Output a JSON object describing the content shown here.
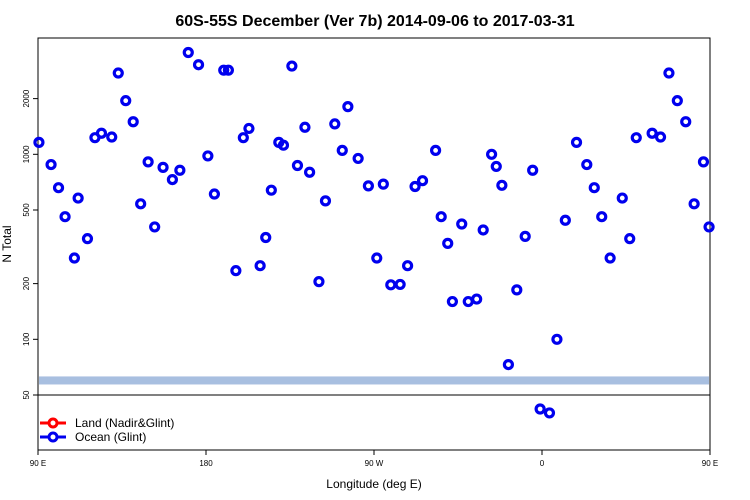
{
  "chart_data": {
    "type": "scatter",
    "title": "60S-55S December (Ver 7b)   2014-09-06 to 2017-03-31",
    "xlabel": "Longitude (deg E)",
    "ylabel": "N Total",
    "x_scale": "longitude",
    "y_scale": "log",
    "xlim": [
      90,
      450
    ],
    "ylim": [
      50,
      5000
    ],
    "x_ticks": [
      {
        "value": 90,
        "label": "90 E"
      },
      {
        "value": 180,
        "label": "180"
      },
      {
        "value": 270,
        "label": "90 W"
      },
      {
        "value": 360,
        "label": "0"
      },
      {
        "value": 450,
        "label": "90 E"
      },
      {
        "value": 540,
        "label": "180"
      }
    ],
    "y_ticks": [
      {
        "value": 50,
        "label": "50"
      },
      {
        "value": 100,
        "label": "100"
      },
      {
        "value": 200,
        "label": "200"
      },
      {
        "value": 500,
        "label": "500"
      },
      {
        "value": 1000,
        "label": "1000"
      },
      {
        "value": 2000,
        "label": "2000"
      }
    ],
    "legend": {
      "position": "bottom-left",
      "entries": [
        {
          "name": "Land (Nadir&Glint)",
          "color": "#ff0000"
        },
        {
          "name": "Ocean (Glint)",
          "color": "#0000ee"
        }
      ]
    },
    "band": {
      "y_range": [
        57,
        63
      ],
      "color": "#a8bfe0"
    },
    "series": [
      {
        "name": "Ocean (Glint)",
        "color": "#0000ee",
        "x": [
          90.5,
          97,
          101,
          104.5,
          109.5,
          111.5,
          116.5,
          120.5,
          124,
          129.5,
          133,
          137,
          141,
          145,
          149,
          152.5,
          157,
          162,
          166,
          170.5,
          176,
          181,
          184.5,
          189.5,
          192,
          196,
          200,
          203,
          209,
          212,
          215,
          219,
          221.5,
          226,
          229,
          233,
          235.5,
          240.5,
          244,
          249,
          253,
          256,
          261.5,
          267,
          271.5,
          275,
          279,
          284,
          288,
          292,
          296,
          303,
          306,
          309.5,
          312,
          317,
          320.5,
          325,
          328.5,
          333,
          335.5,
          338.5,
          342,
          346.5,
          351,
          355,
          359,
          364,
          368,
          372.5,
          378.5,
          384,
          388,
          392,
          396.5,
          403,
          407,
          410.5,
          419,
          423.5,
          428,
          432.5,
          437,
          441.5,
          446.5,
          449.5
        ],
        "y": [
          1160,
          880,
          660,
          460,
          275,
          580,
          350,
          1230,
          1300,
          1240,
          2750,
          1950,
          1500,
          540,
          910,
          405,
          850,
          730,
          820,
          3550,
          3050,
          980,
          610,
          2850,
          2850,
          235,
          1230,
          1380,
          250,
          355,
          640,
          1160,
          1120,
          3000,
          870,
          1400,
          800,
          205,
          560,
          1460,
          1050,
          1810,
          950,
          675,
          275,
          690,
          197,
          198,
          250,
          670,
          720,
          1050,
          460,
          330,
          160,
          420,
          160,
          165,
          390,
          1000,
          860,
          680,
          73,
          185,
          360,
          820,
          42,
          40,
          100,
          440,
          1160,
          880,
          660,
          460,
          275,
          580,
          350,
          1230,
          1300,
          1240,
          2750,
          1950,
          1500,
          540,
          910,
          405
        ]
      }
    ]
  }
}
